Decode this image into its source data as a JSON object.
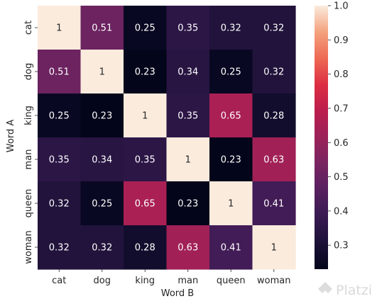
{
  "chart_data": {
    "type": "heatmap",
    "xlabel": "Word B",
    "ylabel": "Word A",
    "x_categories": [
      "cat",
      "dog",
      "king",
      "man",
      "queen",
      "woman"
    ],
    "y_categories": [
      "cat",
      "dog",
      "king",
      "man",
      "queen",
      "woman"
    ],
    "values": [
      [
        1,
        0.51,
        0.25,
        0.35,
        0.32,
        0.32
      ],
      [
        0.51,
        1,
        0.23,
        0.34,
        0.25,
        0.32
      ],
      [
        0.25,
        0.23,
        1,
        0.35,
        0.65,
        0.28
      ],
      [
        0.35,
        0.34,
        0.35,
        1,
        0.23,
        0.63
      ],
      [
        0.32,
        0.25,
        0.65,
        0.23,
        1,
        0.41
      ],
      [
        0.32,
        0.32,
        0.28,
        0.63,
        0.41,
        1
      ]
    ],
    "cell_labels": [
      [
        "1",
        "0.51",
        "0.25",
        "0.35",
        "0.32",
        "0.32"
      ],
      [
        "0.51",
        "1",
        "0.23",
        "0.34",
        "0.25",
        "0.32"
      ],
      [
        "0.25",
        "0.23",
        "1",
        "0.35",
        "0.65",
        "0.28"
      ],
      [
        "0.35",
        "0.34",
        "0.35",
        "1",
        "0.23",
        "0.63"
      ],
      [
        "0.32",
        "0.25",
        "0.65",
        "0.23",
        "1",
        "0.41"
      ],
      [
        "0.32",
        "0.32",
        "0.28",
        "0.63",
        "0.41",
        "1"
      ]
    ],
    "colormap": "rocket",
    "color_range": [
      0.23,
      1
    ],
    "colorbar_ticks": [
      "0.3",
      "0.4",
      "0.5",
      "0.6",
      "0.7",
      "0.8",
      "0.9",
      "1.0"
    ],
    "colorbar_tick_values": [
      0.3,
      0.4,
      0.5,
      0.6,
      0.7,
      0.8,
      0.9,
      1.0
    ],
    "colorbar_placement": "right",
    "grid": false
  },
  "watermark": {
    "text": "Platzi",
    "icon": "platzi-logo-icon"
  }
}
